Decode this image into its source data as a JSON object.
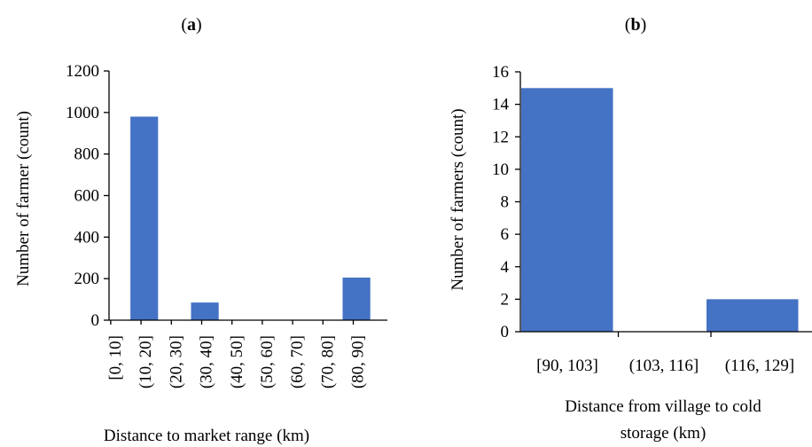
{
  "colors": {
    "bar": "#4472C4",
    "axis": "#000000",
    "background": "#ffffff"
  },
  "chart_data": [
    {
      "type": "bar",
      "panel_label_prefix": "(",
      "panel_label_letter": "a",
      "panel_label_suffix": ")",
      "categories": [
        "[0, 10]",
        "(10, 20]",
        "(20, 30]",
        "(30, 40]",
        "(40, 50]",
        "(50, 60]",
        "(60, 70]",
        "(70, 80]",
        "(80, 90]"
      ],
      "values": [
        0,
        980,
        0,
        85,
        0,
        0,
        0,
        0,
        205
      ],
      "xlabel": "Distance to market range (km)",
      "ylabel": "Number of farmer (count)",
      "ylim": [
        0,
        1200
      ],
      "yticks": [
        "0",
        "200",
        "400",
        "600",
        "800",
        "1000",
        "1200"
      ],
      "grid": false,
      "legend": "none",
      "bar_alignment": "between-ticks"
    },
    {
      "type": "bar",
      "panel_label_prefix": "(",
      "panel_label_letter": "b",
      "panel_label_suffix": ")",
      "categories": [
        "[90, 103]",
        "(103, 116]",
        "(116, 129]"
      ],
      "values": [
        15,
        0,
        2
      ],
      "xlabel_lines": [
        "Distance from village to cold",
        "storage (km)"
      ],
      "ylabel": "Number of farmers (count)",
      "ylim": [
        0,
        16
      ],
      "yticks": [
        "0",
        "2",
        "4",
        "6",
        "8",
        "10",
        "12",
        "14",
        "16"
      ],
      "grid": false,
      "legend": "none"
    }
  ]
}
